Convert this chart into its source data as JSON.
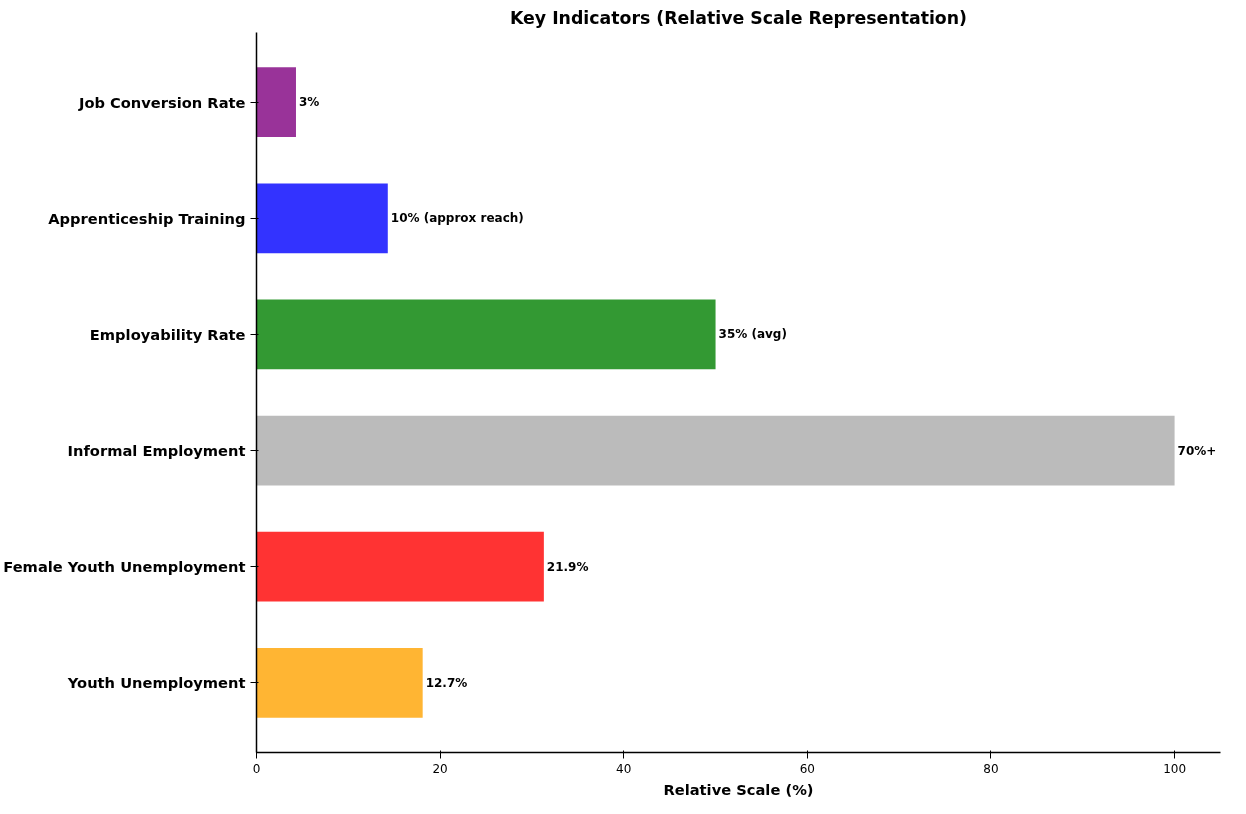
{
  "chart_data": {
    "type": "bar",
    "orientation": "horizontal",
    "title": "Key Indicators (Relative Scale Representation)",
    "xlabel": "Relative Scale (%)",
    "categories": [
      "Job Conversion Rate",
      "Apprenticeship Training",
      "Employability Rate",
      "Informal Employment",
      "Female Youth Unemployment",
      "Youth Unemployment"
    ],
    "values": [
      4.3,
      14.3,
      50,
      100,
      31.3,
      18.1
    ],
    "colors": [
      "#993399",
      "#3333ff",
      "#339933",
      "#bbbbbb",
      "#ff3333",
      "#ffb533"
    ],
    "annotations": [
      {
        "text": "3%",
        "x": 4.3,
        "y": "Job Conversion Rate"
      },
      {
        "text": "10% (approx reach)",
        "x": 14.3,
        "y": "Apprenticeship Training"
      },
      {
        "text": "35% (avg)",
        "x": 50,
        "y": "Employability Rate"
      },
      {
        "text": "70%+",
        "x": 100,
        "y": "Informal Employment"
      },
      {
        "text": "21.9%",
        "x": 31.3,
        "y": "Female Youth Unemployment"
      },
      {
        "text": "12.7%",
        "x": 18.1,
        "y": "Youth Unemployment"
      }
    ],
    "xlim": [
      0,
      105
    ],
    "xticks": [
      0,
      20,
      40,
      60,
      80,
      100
    ],
    "grid": false
  }
}
